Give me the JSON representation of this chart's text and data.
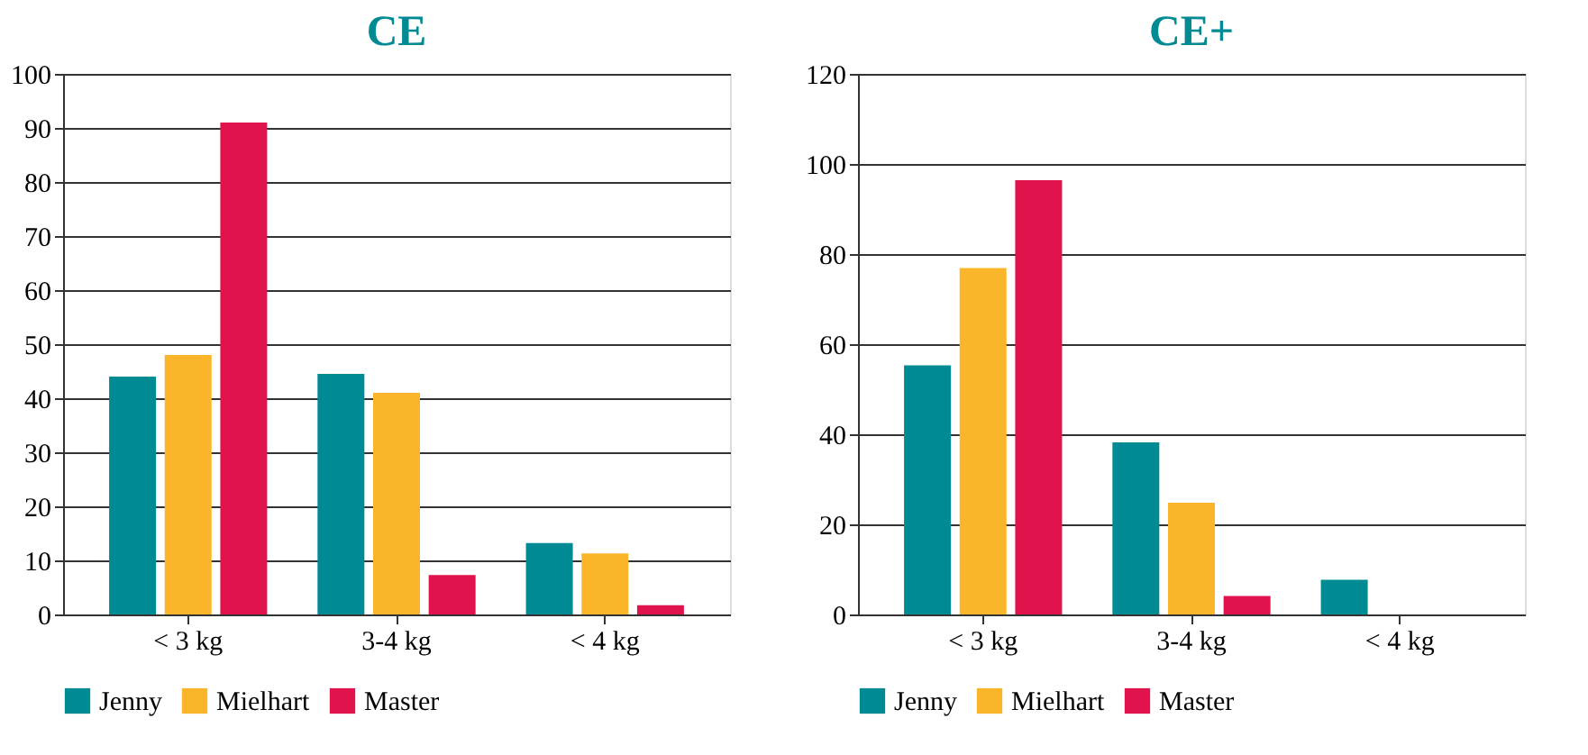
{
  "chart_data": [
    {
      "type": "bar",
      "title": "CE",
      "categories": [
        "< 3 kg",
        "3-4 kg",
        "< 4 kg"
      ],
      "series": [
        {
          "name": "Jenny",
          "color": "#008b94",
          "values": [
            44,
            44.5,
            13.2
          ]
        },
        {
          "name": "Mielhart",
          "color": "#fbb52a",
          "values": [
            48,
            41,
            11.3
          ]
        },
        {
          "name": "Master",
          "color": "#e0134c",
          "values": [
            91,
            7.3,
            1.7
          ]
        }
      ],
      "ylim": [
        0,
        100
      ],
      "yticks": [
        0,
        10,
        20,
        30,
        40,
        50,
        60,
        70,
        80,
        90,
        100
      ],
      "grid": "y",
      "legend": "bottom"
    },
    {
      "type": "bar",
      "title": "CE+",
      "categories": [
        "< 3 kg",
        "3-4 kg",
        "< 4 kg"
      ],
      "series": [
        {
          "name": "Jenny",
          "color": "#008b94",
          "values": [
            55.3,
            38.2,
            7.7
          ]
        },
        {
          "name": "Mielhart",
          "color": "#fbb52a",
          "values": [
            76.9,
            24.8,
            0
          ]
        },
        {
          "name": "Master",
          "color": "#e0134c",
          "values": [
            96.4,
            4.1,
            0
          ]
        }
      ],
      "ylim": [
        0,
        120
      ],
      "yticks": [
        0,
        20,
        40,
        60,
        80,
        100,
        120
      ],
      "grid": "y",
      "legend": "bottom"
    }
  ]
}
